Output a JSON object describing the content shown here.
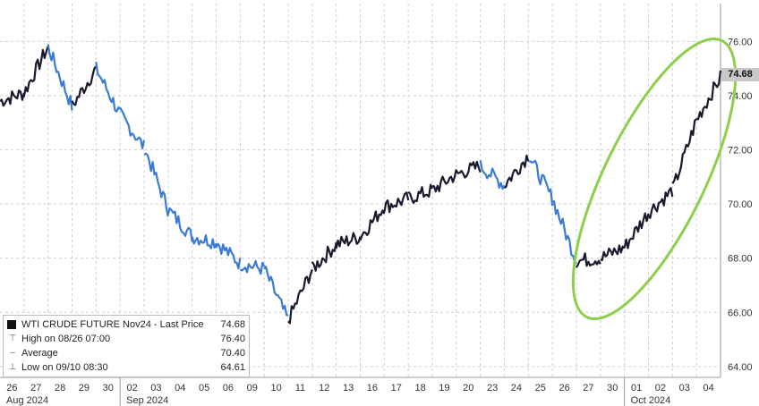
{
  "chart_data": {
    "type": "line",
    "series": [
      {
        "name": "WTI CRUDE FUTURE Nov24",
        "x": [
          "26",
          "27",
          "28",
          "29",
          "30",
          "02",
          "03",
          "04",
          "05",
          "06",
          "09",
          "10",
          "11",
          "12",
          "13",
          "16",
          "17",
          "18",
          "19",
          "20",
          "23",
          "24",
          "25",
          "26",
          "27",
          "30",
          "01",
          "02",
          "03",
          "04"
        ],
        "close": [
          74.1,
          75.8,
          73.6,
          75.0,
          73.3,
          72.1,
          69.8,
          68.8,
          68.6,
          67.8,
          67.6,
          65.7,
          67.6,
          68.5,
          68.8,
          69.9,
          70.2,
          70.5,
          71.1,
          71.4,
          70.7,
          71.8,
          70.2,
          67.9,
          68.0,
          68.4,
          69.7,
          70.5,
          73.1,
          74.68
        ]
      }
    ],
    "yticks": [
      "64.00",
      "66.00",
      "68.00",
      "70.00",
      "72.00",
      "74.00",
      "76.00"
    ],
    "ylim": [
      63.6,
      77.4
    ],
    "month_labels": [
      {
        "label": "Aug 2024",
        "start_index": 0
      },
      {
        "label": "Sep 2024",
        "start_index": 5
      },
      {
        "label": "Oct 2024",
        "start_index": 26
      }
    ],
    "last_price_label": "74.68",
    "annotation": "green ellipse highlighting Oct rally",
    "grid": true,
    "legend_position": "bottom-left"
  },
  "legend": {
    "rows": [
      {
        "label": "WTI CRUDE FUTURE Nov24 - Last Price",
        "value": "74.68"
      },
      {
        "label": "High on 08/26 07:00",
        "value": "76.40"
      },
      {
        "label": "Average",
        "value": "70.40"
      },
      {
        "label": "Low on 09/10 08:30",
        "value": "64.61"
      }
    ]
  },
  "colors": {
    "line_dark": "#1a1a2e",
    "line_blue": "#3a7bd5",
    "ellipse": "#8dcf4a",
    "grid": "#cfcfcf"
  }
}
